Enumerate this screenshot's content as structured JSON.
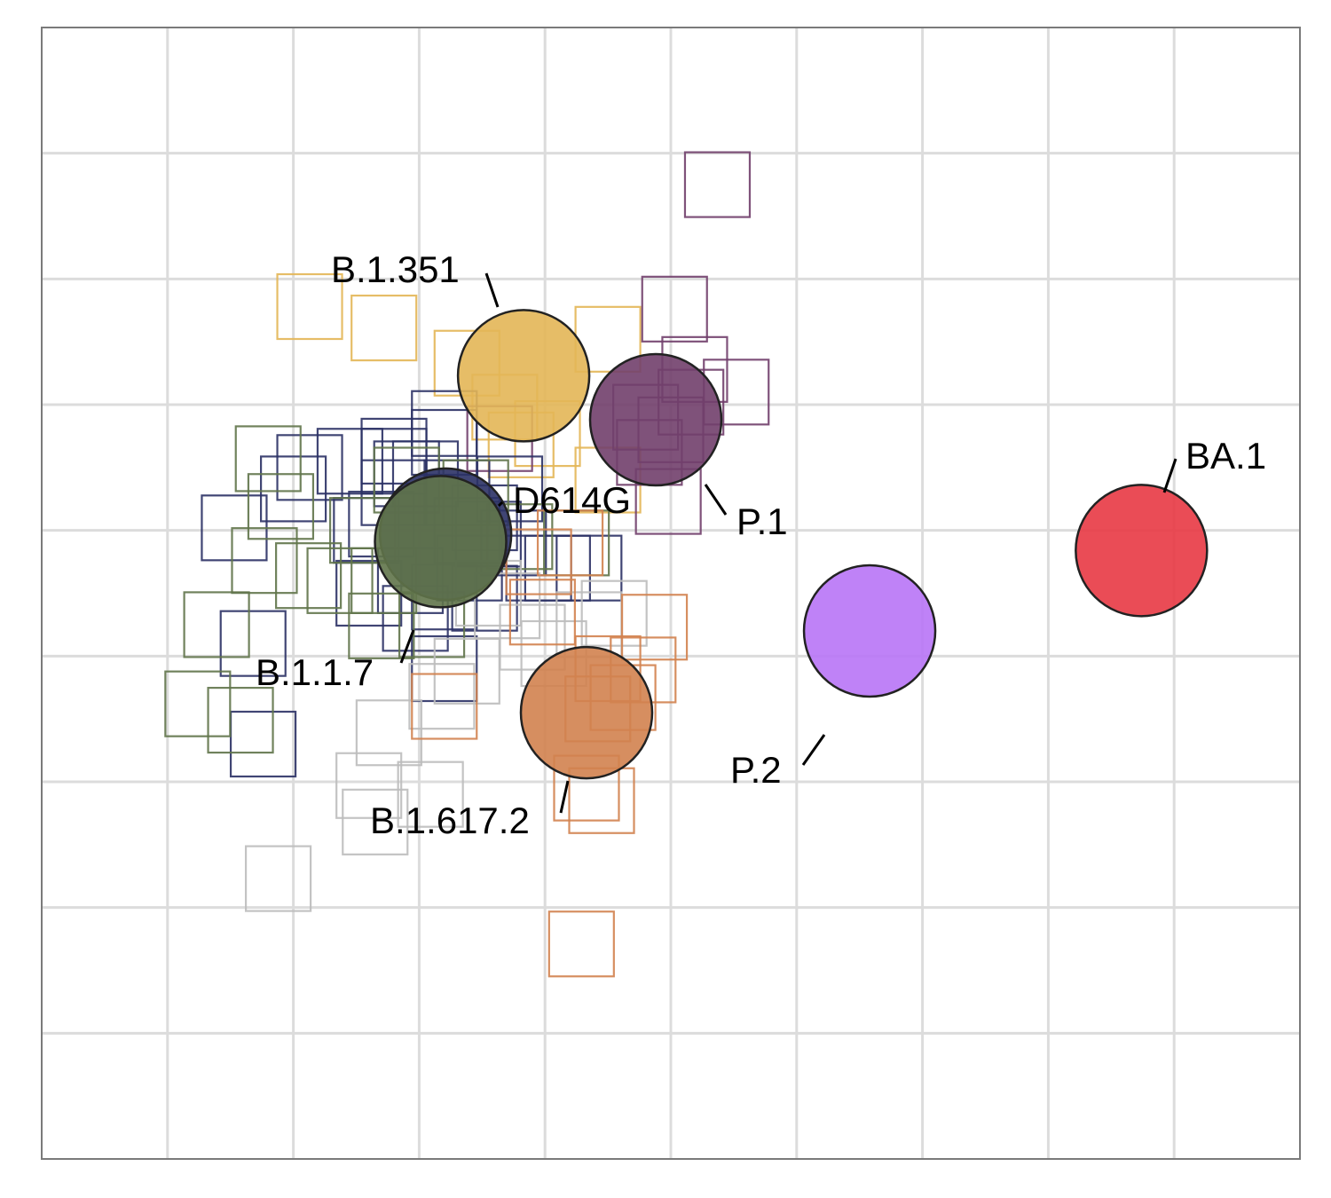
{
  "chart_data": {
    "type": "scatter",
    "title": "",
    "xlabel": "",
    "ylabel": "",
    "xlim": [
      0,
      10
    ],
    "ylim": [
      0,
      9
    ],
    "grid": true,
    "tick_labels_shown": false,
    "antigens": [
      {
        "name": "D614G",
        "x": 3.21,
        "y": 4.97,
        "color": "#2b3165"
      },
      {
        "name": "B.1.1.7",
        "x": 3.17,
        "y": 4.91,
        "color": "#60744a"
      },
      {
        "name": "B.1.351",
        "x": 3.83,
        "y": 6.23,
        "color": "#e3b656"
      },
      {
        "name": "P.1",
        "x": 4.88,
        "y": 5.88,
        "color": "#713f6c"
      },
      {
        "name": "B.1.617.2",
        "x": 4.33,
        "y": 3.55,
        "color": "#d2824f"
      },
      {
        "name": "P.2",
        "x": 6.58,
        "y": 4.2,
        "color": "#b874f6"
      },
      {
        "name": "BA.1",
        "x": 8.74,
        "y": 4.84,
        "color": "#e83844"
      }
    ],
    "sera": [
      {
        "group": "B.1.351",
        "color": "#e3b656",
        "points": [
          [
            2.13,
            6.78
          ],
          [
            2.72,
            6.61
          ],
          [
            3.38,
            6.33
          ],
          [
            4.5,
            6.52
          ],
          [
            3.68,
            5.98
          ],
          [
            3.81,
            5.68
          ],
          [
            4.5,
            5.4
          ],
          [
            4.02,
            5.77
          ]
        ]
      },
      {
        "group": "P.1",
        "color": "#713f6c",
        "points": [
          [
            5.37,
            7.75
          ],
          [
            5.03,
            6.76
          ],
          [
            5.19,
            6.28
          ],
          [
            5.52,
            6.1
          ],
          [
            5.16,
            6.02
          ],
          [
            4.83,
            5.62
          ],
          [
            5.0,
            5.8
          ],
          [
            4.98,
            5.23
          ],
          [
            3.64,
            5.73
          ],
          [
            4.8,
            5.9
          ]
        ]
      },
      {
        "group": "D614G",
        "color": "#2b3165",
        "points": [
          [
            3.2,
            5.85
          ],
          [
            2.8,
            5.55
          ],
          [
            2.7,
            5.05
          ],
          [
            2.9,
            5.45
          ],
          [
            2.13,
            5.5
          ],
          [
            2.0,
            5.33
          ],
          [
            2.45,
            5.55
          ],
          [
            2.58,
            5.0
          ],
          [
            2.8,
            5.3
          ],
          [
            3.3,
            5.3
          ],
          [
            3.52,
            5.1
          ],
          [
            3.72,
            5.33
          ],
          [
            3.2,
            5.7
          ],
          [
            3.05,
            5.45
          ],
          [
            3.38,
            5.0
          ],
          [
            3.55,
            4.97
          ],
          [
            3.75,
            4.9
          ],
          [
            3.95,
            4.7
          ],
          [
            4.1,
            4.7
          ],
          [
            4.35,
            4.7
          ],
          [
            3.4,
            4.7
          ],
          [
            3.2,
            4.47
          ],
          [
            3.52,
            4.46
          ],
          [
            2.6,
            4.5
          ],
          [
            2.97,
            4.3
          ],
          [
            2.93,
            4.6
          ],
          [
            3.2,
            3.9
          ],
          [
            1.53,
            5.02
          ],
          [
            1.68,
            4.1
          ],
          [
            1.76,
            3.3
          ],
          [
            2.8,
            5.63
          ]
        ]
      },
      {
        "group": "B.1.1.7",
        "color": "#60744a",
        "points": [
          [
            1.9,
            5.19
          ],
          [
            1.77,
            4.76
          ],
          [
            2.12,
            4.64
          ],
          [
            1.39,
            4.25
          ],
          [
            2.37,
            4.6
          ],
          [
            1.24,
            3.62
          ],
          [
            1.58,
            3.49
          ],
          [
            2.7,
            4.24
          ],
          [
            2.55,
            5.0
          ],
          [
            2.9,
            5.4
          ],
          [
            3.45,
            5.3
          ],
          [
            3.8,
            4.95
          ],
          [
            4.25,
            4.9
          ],
          [
            3.1,
            4.25
          ],
          [
            2.72,
            4.6
          ],
          [
            1.8,
            5.57
          ]
        ]
      },
      {
        "group": "P.2",
        "color": "#bdbdbd",
        "points": [
          [
            2.76,
            3.39
          ],
          [
            2.6,
            2.97
          ],
          [
            3.09,
            2.9
          ],
          [
            2.65,
            2.68
          ],
          [
            1.88,
            2.23
          ],
          [
            3.18,
            3.68
          ],
          [
            3.38,
            3.88
          ],
          [
            4.07,
            4.02
          ],
          [
            4.55,
            4.34
          ],
          [
            4.35,
            4.25
          ],
          [
            3.55,
            4.5
          ],
          [
            3.7,
            4.4
          ],
          [
            3.9,
            4.15
          ]
        ]
      },
      {
        "group": "B.1.617.2",
        "color": "#d2824f",
        "points": [
          [
            4.42,
            3.58
          ],
          [
            4.33,
            2.95
          ],
          [
            4.45,
            2.85
          ],
          [
            4.87,
            4.23
          ],
          [
            4.78,
            3.89
          ],
          [
            4.62,
            3.67
          ],
          [
            4.29,
            1.71
          ],
          [
            3.2,
            3.6
          ],
          [
            4.5,
            3.9
          ],
          [
            3.95,
            4.75
          ],
          [
            4.2,
            4.9
          ],
          [
            3.98,
            4.35
          ]
        ]
      }
    ],
    "label_positions_note": ""
  },
  "labels": {
    "d614g": "D614G",
    "b117": "B.1.1.7",
    "b1351": "B.1.351",
    "p1": "P.1",
    "b16172": "B.1.617.2",
    "p2": "P.2",
    "ba1": "BA.1"
  }
}
